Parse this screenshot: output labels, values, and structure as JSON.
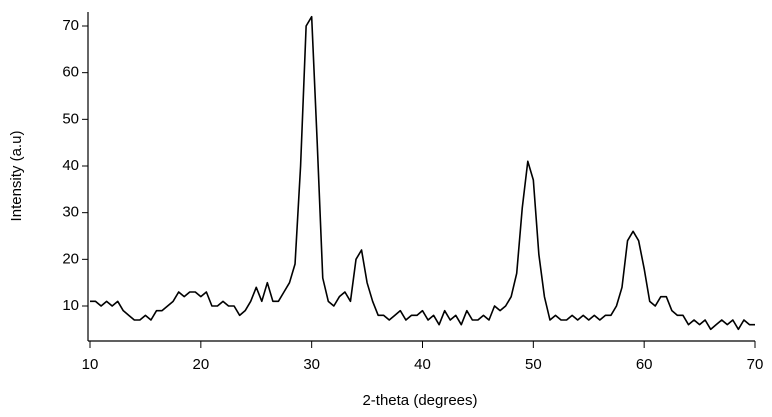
{
  "chart_data": {
    "type": "line",
    "x_label": "2-theta (degrees)",
    "y_label": "Intensity (a.u)",
    "xlim": [
      10,
      70
    ],
    "xticks": [
      10,
      20,
      30,
      40,
      50,
      60,
      70
    ],
    "ylim": [
      2.5,
      73
    ],
    "yticks": [
      10,
      20,
      30,
      40,
      50,
      60,
      70
    ],
    "x": [
      10,
      10.5,
      11,
      11.5,
      12,
      12.5,
      13,
      13.5,
      14,
      14.5,
      15,
      15.5,
      16,
      16.5,
      17,
      17.5,
      18,
      18.5,
      19,
      19.5,
      20,
      20.5,
      21,
      21.5,
      22,
      22.5,
      23,
      23.5,
      24,
      24.5,
      25,
      25.5,
      26,
      26.5,
      27,
      27.5,
      28,
      28.5,
      29,
      29.5,
      30,
      30.5,
      31,
      31.5,
      32,
      32.5,
      33,
      33.5,
      34,
      34.5,
      35,
      35.5,
      36,
      36.5,
      37,
      37.5,
      38,
      38.5,
      39,
      39.5,
      40,
      40.5,
      41,
      41.5,
      42,
      42.5,
      43,
      43.5,
      44,
      44.5,
      45,
      45.5,
      46,
      46.5,
      47,
      47.5,
      48,
      48.5,
      49,
      49.5,
      50,
      50.5,
      51,
      51.5,
      52,
      52.5,
      53,
      53.5,
      54,
      54.5,
      55,
      55.5,
      56,
      56.5,
      57,
      57.5,
      58,
      58.5,
      59,
      59.5,
      60,
      60.5,
      61,
      61.5,
      62,
      62.5,
      63,
      63.5,
      64,
      64.5,
      65,
      65.5,
      66,
      66.5,
      67,
      67.5,
      68,
      68.5,
      69,
      69.5,
      70
    ],
    "series": [
      {
        "color": "#000000",
        "values": [
          11,
          11,
          10,
          11,
          10,
          11,
          9,
          8,
          7,
          7,
          8,
          7,
          9,
          9,
          10,
          11,
          13,
          12,
          13,
          13,
          12,
          13,
          10,
          10,
          11,
          10,
          10,
          8,
          9,
          11,
          14,
          11,
          15,
          11,
          11,
          13,
          15,
          19,
          40,
          70,
          72,
          45,
          16,
          11,
          10,
          12,
          13,
          11,
          20,
          22,
          15,
          11,
          8,
          8,
          7,
          8,
          9,
          7,
          8,
          8,
          9,
          7,
          8,
          6,
          9,
          7,
          8,
          6,
          9,
          7,
          7,
          8,
          7,
          10,
          9,
          10,
          12,
          17,
          31,
          41,
          37,
          21,
          12,
          7,
          8,
          7,
          7,
          8,
          7,
          8,
          7,
          8,
          7,
          8,
          8,
          10,
          14,
          24,
          26,
          24,
          18,
          11,
          10,
          12,
          12,
          9,
          8,
          8,
          6,
          7,
          6,
          7,
          5,
          6,
          7,
          6,
          7,
          5,
          7,
          6,
          6
        ]
      }
    ]
  }
}
